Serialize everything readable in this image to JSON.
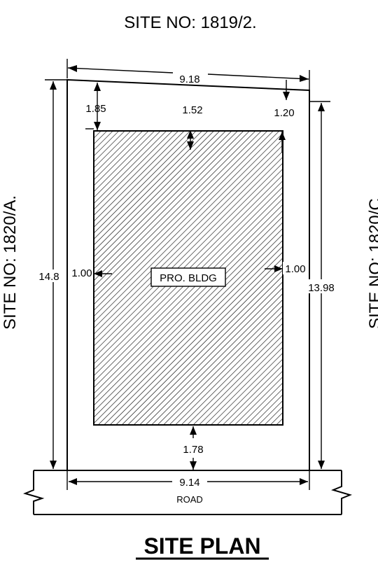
{
  "neighbors": {
    "top": "SITE NO: 1819/2.",
    "left": "SITE NO: 1820/A.",
    "right": "SITE NO: 1820/C"
  },
  "dimensions": {
    "top_width": "9.18",
    "bottom_width": "9.14",
    "left_depth": "14.8",
    "right_depth": "13.98",
    "setback_front_left": "1.85",
    "setback_front_mid": "1.52",
    "setback_front_right": "1.20",
    "setback_side_left": "1.00",
    "setback_side_right": "1.00",
    "setback_rear": "1.78"
  },
  "building_label": "PRO. BLDG",
  "road_label": "ROAD",
  "title": "SITE PLAN"
}
